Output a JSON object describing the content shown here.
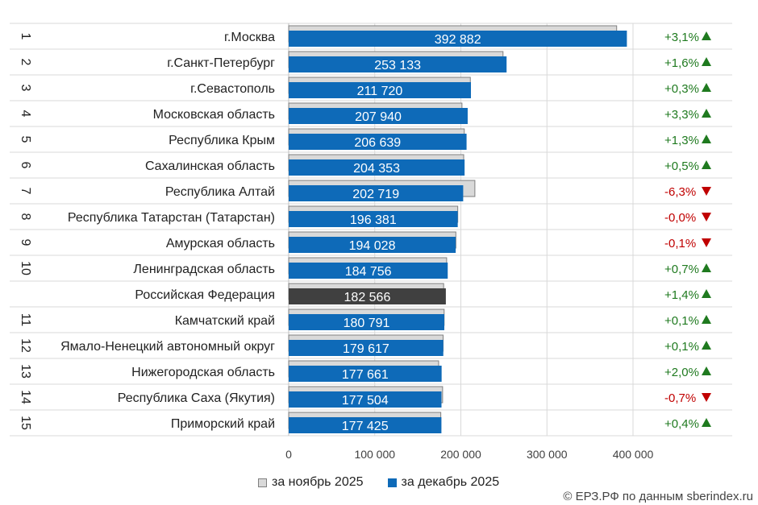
{
  "chart_data": {
    "type": "bar",
    "orientation": "horizontal",
    "xlim": [
      0,
      400000
    ],
    "x_ticks": [
      "0",
      "100 000",
      "200 000",
      "300 000",
      "400 000"
    ],
    "grid": true,
    "legend_position": "bottom",
    "colors": {
      "nov": "#d9d9d9",
      "dec": "#0e6ab8",
      "rf": "#404040",
      "up": "#1f7a1f",
      "down": "#c00000"
    },
    "rows": [
      {
        "rank": "1",
        "region": "г.Москва",
        "nov": 381000,
        "dec": 392882,
        "dec_label": "392 882",
        "change": "+3,1%",
        "dir": "up"
      },
      {
        "rank": "2",
        "region": "г.Санкт-Петербург",
        "nov": 249000,
        "dec": 253133,
        "dec_label": "253 133",
        "change": "+1,6%",
        "dir": "up"
      },
      {
        "rank": "3",
        "region": "г.Севастополь",
        "nov": 211000,
        "dec": 211720,
        "dec_label": "211 720",
        "change": "+0,3%",
        "dir": "up"
      },
      {
        "rank": "4",
        "region": "Московская область",
        "nov": 201300,
        "dec": 207940,
        "dec_label": "207 940",
        "change": "+3,3%",
        "dir": "up"
      },
      {
        "rank": "5",
        "region": "Республика Крым",
        "nov": 204000,
        "dec": 206639,
        "dec_label": "206 639",
        "change": "+1,3%",
        "dir": "up"
      },
      {
        "rank": "6",
        "region": "Сахалинская область",
        "nov": 203300,
        "dec": 204353,
        "dec_label": "204 353",
        "change": "+0,5%",
        "dir": "up"
      },
      {
        "rank": "7",
        "region": "Республика Алтай",
        "nov": 216300,
        "dec": 202719,
        "dec_label": "202 719",
        "change": "-6,3%",
        "dir": "down"
      },
      {
        "rank": "8",
        "region": "Республика Татарстан (Татарстан)",
        "nov": 196400,
        "dec": 196381,
        "dec_label": "196 381",
        "change": "-0,0%",
        "dir": "down"
      },
      {
        "rank": "9",
        "region": "Амурская область",
        "nov": 194200,
        "dec": 194028,
        "dec_label": "194 028",
        "change": "-0,1%",
        "dir": "down"
      },
      {
        "rank": "10",
        "region": "Ленинградская область",
        "nov": 183500,
        "dec": 184756,
        "dec_label": "184 756",
        "change": "+0,7%",
        "dir": "up"
      },
      {
        "rank": "",
        "region": "Российская Федерация",
        "nov": 180000,
        "dec": 182566,
        "dec_label": "182 566",
        "change": "+1,4%",
        "dir": "up",
        "highlight": true
      },
      {
        "rank": "11",
        "region": "Камчатский край",
        "nov": 180600,
        "dec": 180791,
        "dec_label": "180 791",
        "change": "+0,1%",
        "dir": "up"
      },
      {
        "rank": "12",
        "region": "Ямало-Ненецкий автономный округ",
        "nov": 179400,
        "dec": 179617,
        "dec_label": "179 617",
        "change": "+0,1%",
        "dir": "up"
      },
      {
        "rank": "13",
        "region": "Нижегородская область",
        "nov": 174200,
        "dec": 177661,
        "dec_label": "177 661",
        "change": "+2,0%",
        "dir": "up"
      },
      {
        "rank": "14",
        "region": "Республика Саха (Якутия)",
        "nov": 178800,
        "dec": 177504,
        "dec_label": "177 504",
        "change": "-0,7%",
        "dir": "down"
      },
      {
        "rank": "15",
        "region": "Приморский край",
        "nov": 176700,
        "dec": 177425,
        "dec_label": "177 425",
        "change": "+0,4%",
        "dir": "up"
      }
    ]
  },
  "legend": {
    "nov_label": "за ноябрь 2025",
    "dec_label": "за декабрь 2025"
  },
  "source": "© ЕРЗ.РФ по данным sberindex.ru"
}
